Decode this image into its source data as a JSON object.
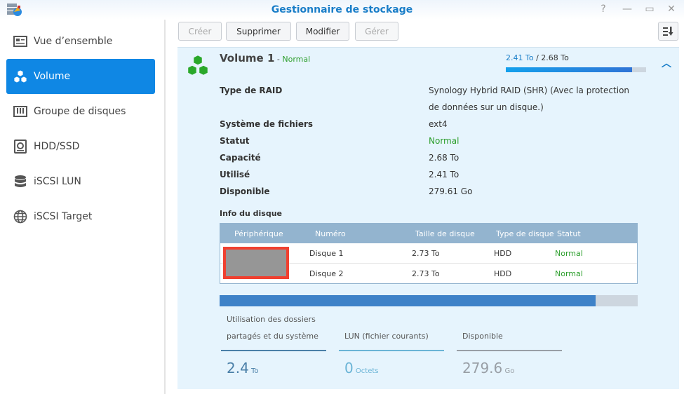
{
  "window": {
    "title": "Gestionnaire de stockage",
    "controls": [
      "?",
      "—",
      "▭",
      "✕"
    ]
  },
  "sidebar": {
    "items": [
      {
        "label": "Vue d’ensemble",
        "icon": "overview-icon"
      },
      {
        "label": "Volume",
        "icon": "volume-cubes-icon",
        "active": true
      },
      {
        "label": "Groupe de disques",
        "icon": "disk-group-icon"
      },
      {
        "label": "HDD/SSD",
        "icon": "hdd-icon"
      },
      {
        "label": "iSCSI LUN",
        "icon": "database-icon"
      },
      {
        "label": "iSCSI Target",
        "icon": "globe-icon"
      }
    ]
  },
  "toolbar": {
    "create": "Créer",
    "delete": "Supprimer",
    "modify": "Modifier",
    "manage": "Gérer",
    "sort_icon": "sort-icon"
  },
  "volume": {
    "name": "Volume 1",
    "sep": " - ",
    "status": "Normal",
    "used": "2.41 To",
    "total": " / 2.68 To",
    "usage_percent": 89.9,
    "details": [
      {
        "label": "Type de RAID",
        "value": "Synology Hybrid RAID (SHR) (Avec la protection",
        "value2": "de données sur un disque.)"
      },
      {
        "label": "Système de fichiers",
        "value": "ext4"
      },
      {
        "label": "Statut",
        "value": "Normal"
      },
      {
        "label": "Capacité",
        "value": "2.68 To"
      },
      {
        "label": "Utilisé",
        "value": "2.41 To"
      },
      {
        "label": "Disponible",
        "value": "279.61 Go"
      }
    ],
    "disk_info_title": "Info du disque",
    "table": {
      "headers": [
        "Périphérique",
        "Numéro",
        "Taille de disque",
        "Type de disque",
        "Statut"
      ],
      "rows": [
        [
          "",
          "Disque 1",
          "2.73 To",
          "HDD",
          "Normal"
        ],
        [
          "",
          "Disque 2",
          "2.73 To",
          "HDD",
          "Normal"
        ]
      ]
    },
    "usage": {
      "bar_percent": 89.9,
      "legends": [
        {
          "label1": "Utilisation des dossiers",
          "label2": "partagés et du système",
          "value": "2.4",
          "unit": " To",
          "color": "#4a7fa8"
        },
        {
          "label1": "",
          "label2": "LUN (fichier courants)",
          "value": "0",
          "unit": " Octets",
          "color": "#6ab4d6"
        },
        {
          "label1": "",
          "label2": "Disponible",
          "value": "279.6",
          "unit": " Go",
          "color": "#999fa6"
        }
      ]
    }
  },
  "colors": {
    "accent": "#0f87e4",
    "normal": "#2c9e2c",
    "table_header": "#93b4cf",
    "usage_bar": "#3e82c8"
  }
}
